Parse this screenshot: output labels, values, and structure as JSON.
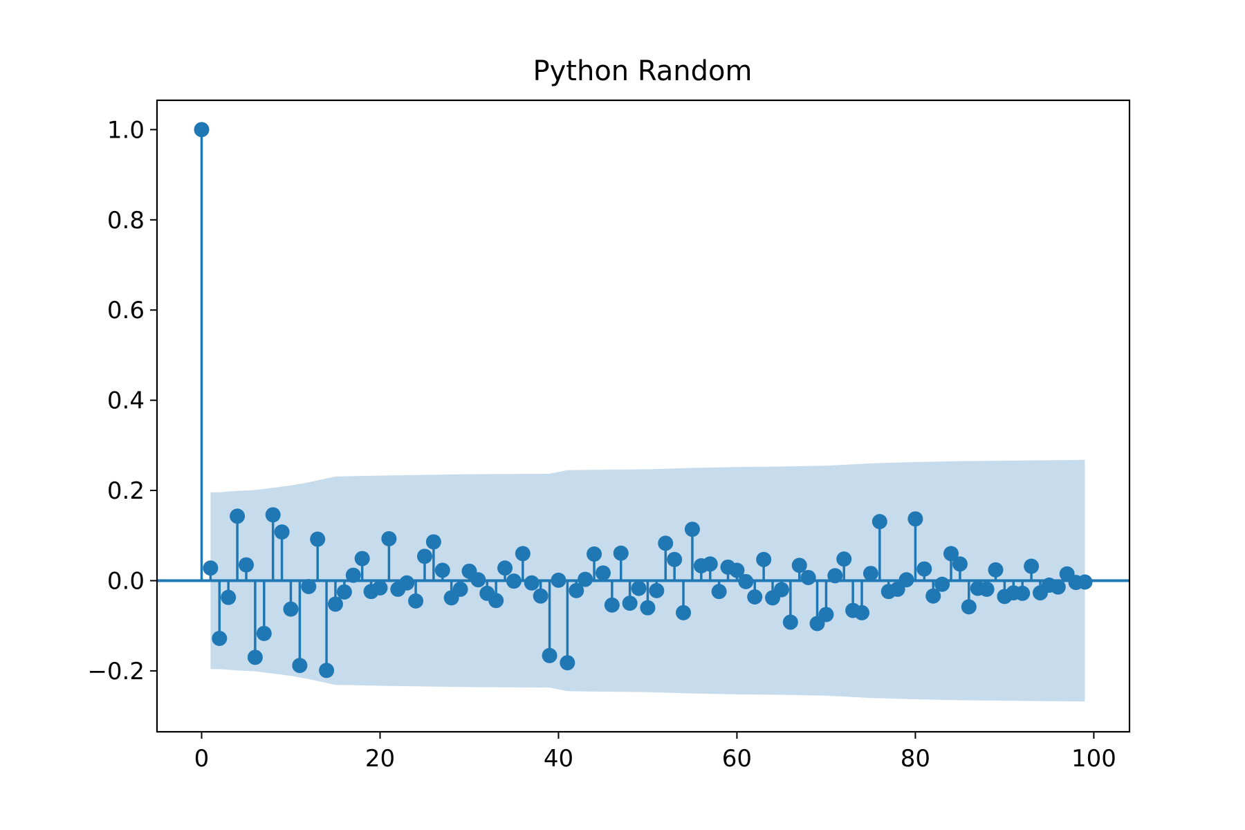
{
  "chart_data": {
    "type": "stem",
    "title": "Python Random",
    "xlabel": "",
    "ylabel": "",
    "xlim": [
      -5,
      104
    ],
    "ylim": [
      -0.335,
      1.065
    ],
    "xticks": [
      0,
      20,
      40,
      60,
      80,
      100
    ],
    "xtick_labels": [
      "0",
      "20",
      "40",
      "60",
      "80",
      "100"
    ],
    "yticks": [
      -0.2,
      0.0,
      0.2,
      0.4,
      0.6,
      0.8,
      1.0
    ],
    "ytick_labels": [
      "−0.2",
      "0.0",
      "0.2",
      "0.4",
      "0.6",
      "0.8",
      "1.0"
    ],
    "grid": false,
    "legend": "none",
    "series_color": "#1f77b4",
    "band_color": "#c6dbec",
    "lags": [
      0,
      1,
      2,
      3,
      4,
      5,
      6,
      7,
      8,
      9,
      10,
      11,
      12,
      13,
      14,
      15,
      16,
      17,
      18,
      19,
      20,
      21,
      22,
      23,
      24,
      25,
      26,
      27,
      28,
      29,
      30,
      31,
      32,
      33,
      34,
      35,
      36,
      37,
      38,
      39,
      40,
      41,
      42,
      43,
      44,
      45,
      46,
      47,
      48,
      49,
      50,
      51,
      52,
      53,
      54,
      55,
      56,
      57,
      58,
      59,
      60,
      61,
      62,
      63,
      64,
      65,
      66,
      67,
      68,
      69,
      70,
      71,
      72,
      73,
      74,
      75,
      76,
      77,
      78,
      79,
      80,
      81,
      82,
      83,
      84,
      85,
      86,
      87,
      88,
      89,
      90,
      91,
      92,
      93,
      94,
      95,
      96,
      97,
      98,
      99
    ],
    "values": [
      1.0,
      0.028,
      -0.128,
      -0.037,
      0.143,
      0.035,
      -0.17,
      -0.117,
      0.146,
      0.108,
      -0.063,
      -0.188,
      -0.013,
      0.092,
      -0.199,
      -0.052,
      -0.025,
      0.012,
      0.049,
      -0.024,
      -0.016,
      0.093,
      -0.019,
      -0.005,
      -0.045,
      0.054,
      0.086,
      0.023,
      -0.038,
      -0.019,
      0.021,
      0.002,
      -0.028,
      -0.044,
      0.028,
      -0.001,
      0.06,
      -0.005,
      -0.034,
      -0.166,
      0.001,
      -0.182,
      -0.022,
      0.003,
      0.059,
      0.017,
      -0.054,
      0.061,
      -0.05,
      -0.017,
      -0.06,
      -0.022,
      0.083,
      0.047,
      -0.071,
      0.114,
      0.033,
      0.037,
      -0.024,
      0.03,
      0.023,
      -0.002,
      -0.036,
      0.047,
      -0.038,
      -0.02,
      -0.092,
      0.034,
      0.007,
      -0.095,
      -0.075,
      0.011,
      0.048,
      -0.066,
      -0.071,
      0.016,
      0.131,
      -0.024,
      -0.019,
      0.002,
      0.137,
      0.026,
      -0.034,
      -0.008,
      0.06,
      0.037,
      -0.058,
      -0.017,
      -0.019,
      0.024,
      -0.035,
      -0.027,
      -0.028,
      0.032,
      -0.027,
      -0.01,
      -0.014,
      0.015,
      -0.004,
      -0.003
    ],
    "confidence_band": {
      "x": [
        1,
        2,
        4,
        6,
        8,
        10,
        12,
        15,
        20,
        30,
        39,
        41,
        45,
        50,
        55,
        60,
        65,
        70,
        75,
        80,
        85,
        90,
        95,
        99
      ],
      "upper": [
        0.196,
        0.196,
        0.199,
        0.201,
        0.206,
        0.211,
        0.218,
        0.231,
        0.233,
        0.236,
        0.237,
        0.245,
        0.246,
        0.247,
        0.25,
        0.252,
        0.253,
        0.255,
        0.26,
        0.263,
        0.265,
        0.266,
        0.267,
        0.268
      ],
      "lower": [
        -0.196,
        -0.196,
        -0.199,
        -0.201,
        -0.206,
        -0.211,
        -0.218,
        -0.231,
        -0.233,
        -0.236,
        -0.237,
        -0.245,
        -0.246,
        -0.247,
        -0.25,
        -0.252,
        -0.253,
        -0.255,
        -0.26,
        -0.263,
        -0.265,
        -0.266,
        -0.267,
        -0.268
      ]
    }
  }
}
